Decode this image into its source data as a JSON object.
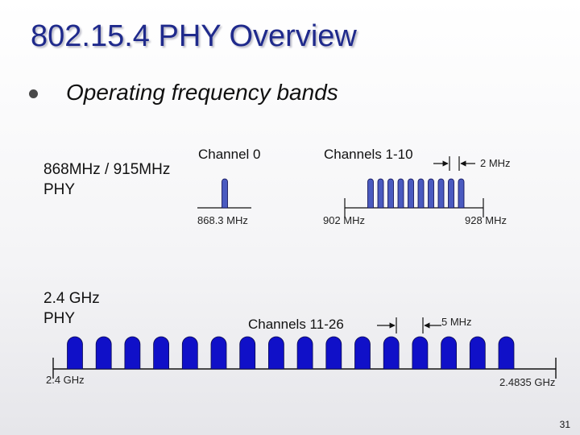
{
  "title": "802.15.4 PHY Overview",
  "bullet": "Operating frequency bands",
  "band_868_915": {
    "label_line1": "868MHz / 915MHz",
    "label_line2": "PHY",
    "channel0_label": "Channel 0",
    "channels_label": "Channels 1-10",
    "spacing_label": "2 MHz",
    "freq_start": "868.3 MHz",
    "freq_mid": "902 MHz",
    "freq_end": "928 MHz"
  },
  "band_2400": {
    "label_line1": "2.4 GHz",
    "label_line2": "PHY",
    "channels_label": "Channels 11-26",
    "spacing_label": "5 MHz",
    "freq_start": "2.4 GHz",
    "freq_end": "2.4835 GHz"
  },
  "page_number": "31",
  "colors": {
    "title": "#1f2a8c",
    "channel_fill": "#1010c8",
    "channel_fill_small": "#4a5ac0"
  }
}
